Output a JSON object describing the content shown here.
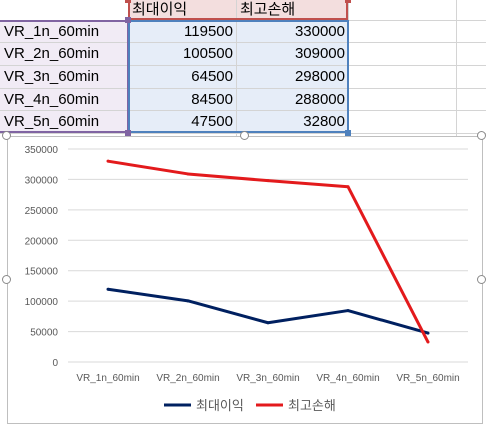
{
  "sheet": {
    "headers": [
      "최대이익",
      "최고손해"
    ],
    "rows": [
      {
        "label": "VR_1n_60min",
        "max_profit": "119500",
        "max_loss": "330000"
      },
      {
        "label": "VR_2n_60min",
        "max_profit": "100500",
        "max_loss": "309000"
      },
      {
        "label": "VR_3n_60min",
        "max_profit": "64500",
        "max_loss": "298000"
      },
      {
        "label": "VR_4n_60min",
        "max_profit": "84500",
        "max_loss": "288000"
      },
      {
        "label": "VR_5n_60min",
        "max_profit": "47500",
        "max_loss": "32800"
      }
    ]
  },
  "chart_data": {
    "type": "line",
    "categories": [
      "VR_1n_60min",
      "VR_2n_60min",
      "VR_3n_60min",
      "VR_4n_60min",
      "VR_5n_60min"
    ],
    "series": [
      {
        "name": "최대이익",
        "values": [
          119500,
          100500,
          64500,
          84500,
          47500
        ],
        "color": "#002060"
      },
      {
        "name": "최고손해",
        "values": [
          330000,
          309000,
          298000,
          288000,
          32800
        ],
        "color": "#e31a1c"
      }
    ],
    "y_ticks": [
      "0",
      "50000",
      "100000",
      "150000",
      "200000",
      "250000",
      "300000",
      "350000"
    ],
    "ylim": [
      0,
      350000
    ],
    "grid": true,
    "legend_position": "bottom",
    "colors": {
      "gridline": "#d9d9d9",
      "axis_text": "#595959"
    }
  }
}
